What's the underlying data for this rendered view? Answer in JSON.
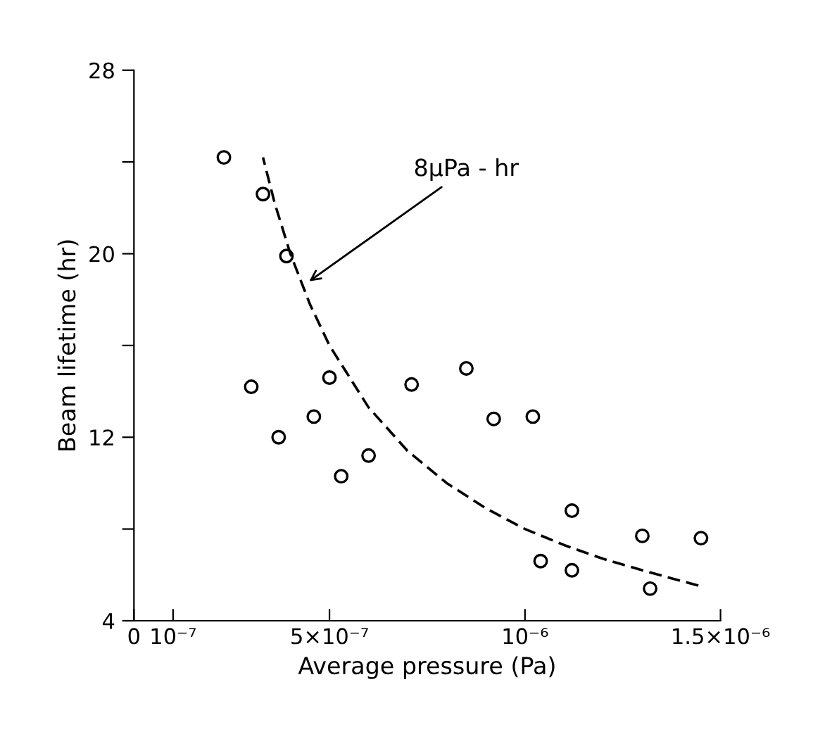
{
  "chart_data": {
    "type": "scatter",
    "xlabel": "Average pressure (Pa)",
    "ylabel": "Beam lifetime (hr)",
    "xlim": [
      0,
      1.5e-06
    ],
    "ylim": [
      4,
      28
    ],
    "xticks": [
      0,
      {
        "value": 1e-07,
        "label": "10⁻⁷"
      },
      {
        "value": 5e-07,
        "label": "5×10⁻⁷"
      },
      {
        "value": 1e-06,
        "label": "10⁻⁶"
      },
      {
        "value": 1.5e-06,
        "label": "1.5×10⁻⁶"
      }
    ],
    "yticks": [
      4,
      {
        "value": 8,
        "label": null
      },
      12,
      {
        "value": 16,
        "label": null
      },
      20,
      {
        "value": 24,
        "label": null
      },
      28
    ],
    "grid": false,
    "legend": false,
    "marker": "circle",
    "series": [
      {
        "color": "#000000",
        "x": [
          2.3e-07,
          3.3e-07,
          3.9e-07,
          3e-07,
          3.7e-07,
          4.6e-07,
          5e-07,
          5.3e-07,
          6e-07,
          7.1e-07,
          8.5e-07,
          9.2e-07,
          1.02e-06,
          1.12e-06,
          1.04e-06,
          1.12e-06,
          1.3e-06,
          1.45e-06,
          1.32e-06
        ],
        "values": [
          24.2,
          22.6,
          19.9,
          14.2,
          12.0,
          12.9,
          14.6,
          10.3,
          11.2,
          14.3,
          15.0,
          12.8,
          12.9,
          8.8,
          6.6,
          6.2,
          7.7,
          7.6,
          5.4
        ]
      },
      {
        "type": "line",
        "color": "#000000",
        "line_style": "dashed",
        "marker": "none",
        "x": [
          3.3e-07,
          3.6e-07,
          4e-07,
          4.5e-07,
          5e-07,
          6e-07,
          7e-07,
          8e-07,
          9e-07,
          1e-06,
          1.1e-06,
          1.2e-06,
          1.3e-06,
          1.45e-06
        ],
        "values": [
          24.2,
          22.2,
          20.0,
          17.8,
          16.0,
          13.3,
          11.4,
          10.0,
          8.9,
          8.0,
          7.3,
          6.7,
          6.2,
          5.5
        ]
      }
    ],
    "annotations": [
      {
        "text": "8μPa - hr",
        "x": 4.4e-07,
        "y": 18.7
      }
    ]
  }
}
